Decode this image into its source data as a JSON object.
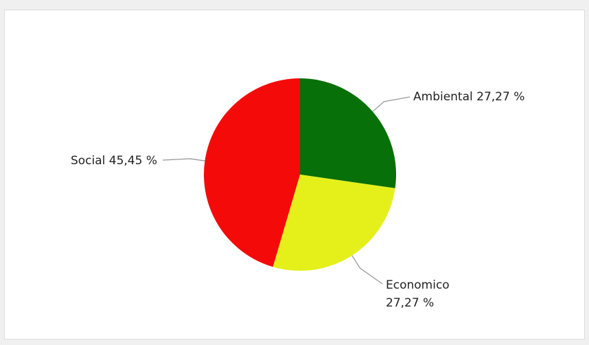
{
  "chart_data": {
    "type": "pie",
    "title": "",
    "slices": [
      {
        "name": "Ambiental",
        "value": 27.27,
        "label": "Ambiental 27,27 %",
        "color": "#087008"
      },
      {
        "name": "Economico",
        "value": 27.27,
        "label_lines": [
          "Economico",
          "27,27 %"
        ],
        "color": "#e5f01b"
      },
      {
        "name": "Social",
        "value": 45.45,
        "label": "Social 45,45 %",
        "color": "#f50a0a"
      }
    ]
  }
}
